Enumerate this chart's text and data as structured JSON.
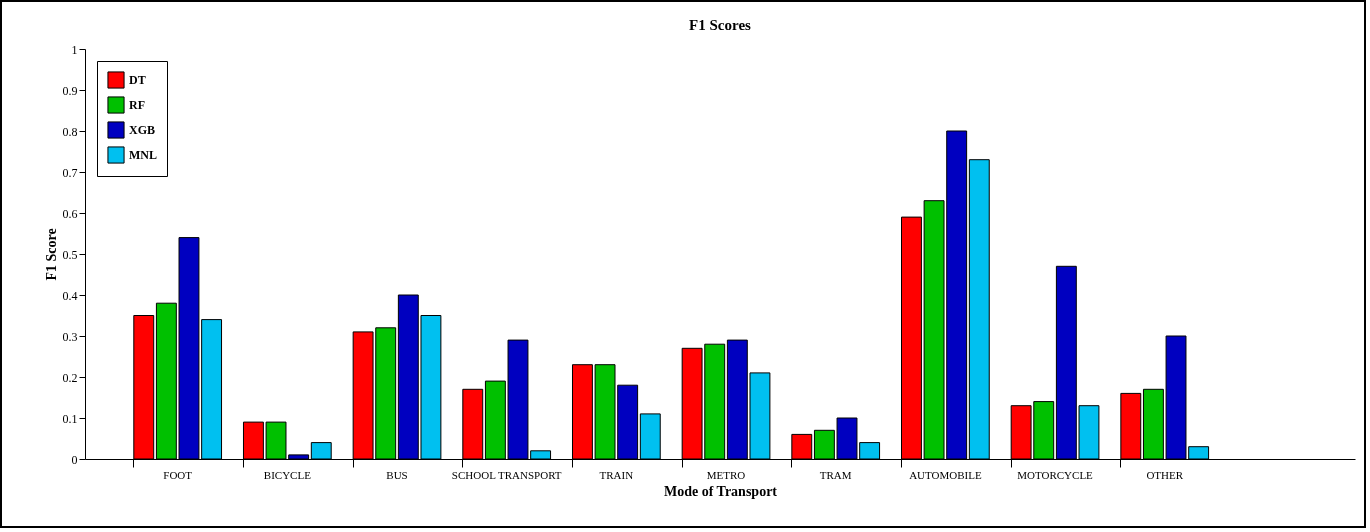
{
  "chart_data": {
    "type": "bar",
    "title": "F1 Scores",
    "xlabel": "Mode of Transport",
    "ylabel": "F1 Score",
    "categories": [
      "FOOT",
      "BICYCLE",
      "BUS",
      "SCHOOL TRANSPORT",
      "TRAIN",
      "METRO",
      "TRAM",
      "AUTOMOBILE",
      "MOTORCYCLE",
      "OTHER"
    ],
    "series": [
      {
        "name": "DT",
        "color": "#ff0000",
        "values": [
          0.35,
          0.09,
          0.31,
          0.17,
          0.23,
          0.27,
          0.06,
          0.59,
          0.13,
          0.16
        ]
      },
      {
        "name": "RF",
        "color": "#00c000",
        "values": [
          0.38,
          0.09,
          0.32,
          0.19,
          0.23,
          0.28,
          0.07,
          0.63,
          0.14,
          0.17
        ]
      },
      {
        "name": "XGB",
        "color": "#0000c0",
        "values": [
          0.54,
          0.01,
          0.4,
          0.29,
          0.18,
          0.29,
          0.1,
          0.8,
          0.47,
          0.3
        ]
      },
      {
        "name": "MNL",
        "color": "#00c0f0",
        "values": [
          0.34,
          0.04,
          0.35,
          0.02,
          0.11,
          0.21,
          0.04,
          0.73,
          0.13,
          0.03
        ]
      }
    ],
    "ylim": [
      0,
      1
    ],
    "yticks": [
      0,
      0.1,
      0.2,
      0.3,
      0.4,
      0.5,
      0.6,
      0.7,
      0.8,
      0.9,
      1
    ],
    "grid": false,
    "legend": "top left"
  }
}
